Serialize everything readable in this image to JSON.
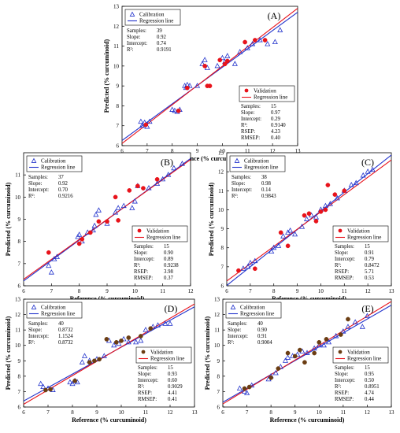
{
  "chart_data": [
    {
      "type": "scatter",
      "panel_label": "(A)",
      "xlabel": "Reference (% curcuminoid)",
      "ylabel": "Predicted (% curcuminoid)",
      "xlim": [
        6,
        13
      ],
      "ylim": [
        6,
        13
      ],
      "xticks": [
        "6",
        "7",
        "8",
        "9",
        "10",
        "11",
        "12",
        "13"
      ],
      "yticks": [
        "6",
        "7",
        "8",
        "9",
        "10",
        "11",
        "12",
        "13"
      ],
      "legend_cal": {
        "marker": "Calibration",
        "line": "Regression line",
        "placement": "top-left"
      },
      "stats_cal": [
        [
          "Samples:",
          "39"
        ],
        [
          "Slope:",
          "0.92"
        ],
        [
          "Intercept:",
          "0.74"
        ],
        [
          "R²:",
          "0.9191"
        ]
      ],
      "legend_val": {
        "marker": "Validation",
        "line": "Regression line",
        "placement": "bottom-right"
      },
      "stats_val": [
        [
          "Samples:",
          "15"
        ],
        [
          "Slope:",
          "0.97"
        ],
        [
          "Intercept:",
          "0.29"
        ],
        [
          "R²:",
          "0.9140"
        ],
        [
          "RSEP:",
          "4.23"
        ],
        [
          "RMSEP:",
          "0.40"
        ]
      ],
      "cal_line": {
        "slope": 0.92,
        "intercept": 0.74
      },
      "val_line": {
        "slope": 0.97,
        "intercept": 0.29
      },
      "val_marker": "circle",
      "val_color": "#e8131b",
      "calibration": [
        [
          6.75,
          7.2
        ],
        [
          6.8,
          7.0
        ],
        [
          6.9,
          7.15
        ],
        [
          7.0,
          6.95
        ],
        [
          7.1,
          7.2
        ],
        [
          8.0,
          7.8
        ],
        [
          8.1,
          7.75
        ],
        [
          8.2,
          7.7
        ],
        [
          8.3,
          7.8
        ],
        [
          8.5,
          9.0
        ],
        [
          8.55,
          8.9
        ],
        [
          8.6,
          9.05
        ],
        [
          8.7,
          9.0
        ],
        [
          9.0,
          9.0
        ],
        [
          9.2,
          10.1
        ],
        [
          9.3,
          10.3
        ],
        [
          9.4,
          9.9
        ],
        [
          9.8,
          10.0
        ],
        [
          10.0,
          10.4
        ],
        [
          10.1,
          10.2
        ],
        [
          10.2,
          10.5
        ],
        [
          10.5,
          10.1
        ],
        [
          10.7,
          10.7
        ],
        [
          11.0,
          10.9
        ],
        [
          11.2,
          11.1
        ],
        [
          11.5,
          11.3
        ],
        [
          11.8,
          11.1
        ],
        [
          12.1,
          11.2
        ],
        [
          12.3,
          11.8
        ]
      ],
      "validation": [
        [
          6.95,
          7.05
        ],
        [
          8.25,
          7.75
        ],
        [
          8.6,
          8.9
        ],
        [
          9.3,
          10.0
        ],
        [
          9.4,
          9.0
        ],
        [
          9.5,
          9.0
        ],
        [
          9.9,
          10.3
        ],
        [
          10.1,
          10.1
        ],
        [
          10.2,
          10.25
        ],
        [
          10.9,
          11.2
        ],
        [
          11.3,
          11.3
        ],
        [
          11.7,
          11.3
        ]
      ]
    },
    {
      "type": "scatter",
      "panel_label": "(B)",
      "xlabel": "Reference (% curcuminoid)",
      "ylabel": "Predicted (% curcuminoid)",
      "xlim": [
        6,
        12
      ],
      "ylim": [
        6,
        12
      ],
      "xticks": [
        "6",
        "7",
        "8",
        "9",
        "10",
        "11",
        "12"
      ],
      "yticks": [
        "6",
        "7",
        "8",
        "9",
        "10",
        "11"
      ],
      "legend_cal": {
        "marker": "Calibration",
        "line": "Regression line",
        "placement": "top-left"
      },
      "stats_cal": [
        [
          "Samples:",
          "37"
        ],
        [
          "Slope:",
          "0.92"
        ],
        [
          "Intercept:",
          "0.70"
        ],
        [
          "R²:",
          "0.9216"
        ]
      ],
      "legend_val": {
        "marker": "Validation",
        "line": "Regression line",
        "placement": "bottom-right"
      },
      "stats_val": [
        [
          "Samples:",
          "15"
        ],
        [
          "Slope:",
          "0.90"
        ],
        [
          "Intercept:",
          "0.89"
        ],
        [
          "R²:",
          "0.9238"
        ],
        [
          "RSEP:",
          "3.98"
        ],
        [
          "RMSEP:",
          "0.37"
        ]
      ],
      "cal_line": {
        "slope": 0.92,
        "intercept": 0.7
      },
      "val_line": {
        "slope": 0.9,
        "intercept": 0.89
      },
      "val_marker": "circle",
      "val_color": "#e8131b",
      "calibration": [
        [
          6.9,
          6.9
        ],
        [
          7.0,
          6.6
        ],
        [
          7.1,
          7.2
        ],
        [
          7.2,
          7.3
        ],
        [
          7.95,
          8.2
        ],
        [
          8.0,
          8.3
        ],
        [
          8.1,
          8.0
        ],
        [
          8.3,
          8.4
        ],
        [
          8.5,
          8.5
        ],
        [
          8.55,
          8.7
        ],
        [
          8.6,
          9.2
        ],
        [
          8.7,
          9.4
        ],
        [
          9.0,
          8.8
        ],
        [
          9.3,
          9.3
        ],
        [
          9.4,
          9.5
        ],
        [
          9.6,
          9.6
        ],
        [
          9.9,
          9.5
        ],
        [
          10.0,
          9.8
        ],
        [
          10.1,
          10.5
        ],
        [
          10.5,
          10.4
        ],
        [
          10.8,
          10.6
        ],
        [
          11.0,
          10.8
        ],
        [
          11.2,
          11.0
        ],
        [
          11.4,
          11.3
        ],
        [
          11.7,
          11.5
        ]
      ],
      "validation": [
        [
          6.9,
          7.5
        ],
        [
          8.0,
          7.9
        ],
        [
          8.1,
          8.1
        ],
        [
          8.4,
          8.4
        ],
        [
          8.7,
          8.9
        ],
        [
          9.0,
          8.9
        ],
        [
          9.3,
          10.0
        ],
        [
          9.4,
          8.95
        ],
        [
          9.8,
          10.3
        ],
        [
          10.1,
          10.5
        ],
        [
          10.3,
          10.4
        ],
        [
          10.8,
          10.8
        ]
      ]
    },
    {
      "type": "scatter",
      "panel_label": "(C)",
      "xlabel": "Reference (% curcuminoid)",
      "ylabel": "Predicted (% curcuminoid)",
      "xlim": [
        6,
        13
      ],
      "ylim": [
        6,
        13
      ],
      "xticks": [
        "6",
        "7",
        "8",
        "9",
        "10",
        "11",
        "12",
        "13"
      ],
      "yticks": [
        "6",
        "7",
        "8",
        "9",
        "10",
        "11",
        "12",
        "13"
      ],
      "legend_cal": {
        "marker": "Calibration",
        "line": "Regression line",
        "placement": "top-left"
      },
      "stats_cal": [
        [
          "Samples:",
          "38"
        ],
        [
          "Slope:",
          "0.98"
        ],
        [
          "Intercept:",
          "0.14"
        ],
        [
          "R²:",
          "0.9843"
        ]
      ],
      "legend_val": {
        "marker": "Validation",
        "line": "Regression line",
        "placement": "bottom-right"
      },
      "stats_val": [
        [
          "Samples:",
          "15"
        ],
        [
          "Slope:",
          "0.91"
        ],
        [
          "Intercept:",
          "0.79"
        ],
        [
          "R²:",
          "0.8472"
        ],
        [
          "RSEP:",
          "5.71"
        ],
        [
          "RMSEP:",
          "0.53"
        ]
      ],
      "cal_line": {
        "slope": 0.98,
        "intercept": 0.14
      },
      "val_line": {
        "slope": 0.91,
        "intercept": 0.79
      },
      "val_marker": "circle",
      "val_color": "#e8131b",
      "calibration": [
        [
          6.7,
          6.9
        ],
        [
          6.9,
          7.0
        ],
        [
          7.0,
          7.2
        ],
        [
          7.2,
          7.3
        ],
        [
          7.9,
          7.8
        ],
        [
          8.0,
          8.0
        ],
        [
          8.2,
          8.1
        ],
        [
          8.4,
          8.6
        ],
        [
          8.6,
          8.8
        ],
        [
          8.7,
          8.9
        ],
        [
          8.9,
          8.7
        ],
        [
          9.2,
          9.1
        ],
        [
          9.4,
          9.5
        ],
        [
          9.6,
          9.7
        ],
        [
          9.8,
          9.6
        ],
        [
          10.0,
          10.0
        ],
        [
          10.2,
          10.2
        ],
        [
          10.4,
          10.3
        ],
        [
          10.7,
          10.6
        ],
        [
          11.0,
          11.0
        ],
        [
          11.3,
          11.3
        ],
        [
          11.5,
          11.4
        ],
        [
          11.8,
          11.8
        ],
        [
          12.0,
          12.0
        ],
        [
          12.2,
          12.1
        ]
      ],
      "validation": [
        [
          6.5,
          6.8
        ],
        [
          7.2,
          6.9
        ],
        [
          8.3,
          8.8
        ],
        [
          8.6,
          8.1
        ],
        [
          9.3,
          9.7
        ],
        [
          9.5,
          9.8
        ],
        [
          9.8,
          9.4
        ],
        [
          10.0,
          9.9
        ],
        [
          10.2,
          10.0
        ],
        [
          10.3,
          11.3
        ],
        [
          10.6,
          10.8
        ],
        [
          11.0,
          11.0
        ]
      ]
    },
    {
      "type": "scatter",
      "panel_label": "(D)",
      "xlabel": "Reference (% curcuminoid)",
      "ylabel": "Predicted (% curcuminoid)",
      "xlim": [
        6,
        13
      ],
      "ylim": [
        6,
        13
      ],
      "xticks": [
        "6",
        "7",
        "8",
        "9",
        "10",
        "11",
        "12",
        "13"
      ],
      "yticks": [
        "6",
        "7",
        "8",
        "9",
        "10",
        "11",
        "12",
        "13"
      ],
      "legend_cal": {
        "marker": "Calibration",
        "line": "Regression line",
        "placement": "top-left"
      },
      "stats_cal": [
        [
          "Samples:",
          "40"
        ],
        [
          "Slope:",
          "0.8732"
        ],
        [
          "Intercept:",
          "1.1524"
        ],
        [
          "R²:",
          "0.8732"
        ]
      ],
      "legend_val": {
        "marker": "Validation",
        "line": "Regression line",
        "placement": "bottom-right"
      },
      "stats_val": [
        [
          "Samples:",
          "15"
        ],
        [
          "Slope:",
          "0.93"
        ],
        [
          "Intercept:",
          "0.60"
        ],
        [
          "R²:",
          "0.9029"
        ],
        [
          "RSEP:",
          "4.41"
        ],
        [
          "RMSEP:",
          "0.41"
        ]
      ],
      "cal_line": {
        "slope": 0.8732,
        "intercept": 1.1524
      },
      "val_line": {
        "slope": 0.93,
        "intercept": 0.6
      },
      "val_marker": "circle",
      "val_color": "#6b3d12",
      "calibration": [
        [
          6.7,
          7.5
        ],
        [
          6.8,
          7.3
        ],
        [
          7.0,
          7.2
        ],
        [
          7.2,
          7.1
        ],
        [
          7.9,
          7.6
        ],
        [
          8.0,
          7.5
        ],
        [
          8.1,
          7.7
        ],
        [
          8.2,
          7.6
        ],
        [
          8.4,
          8.9
        ],
        [
          8.5,
          9.3
        ],
        [
          8.7,
          9.0
        ],
        [
          9.0,
          9.1
        ],
        [
          9.3,
          9.3
        ],
        [
          9.5,
          10.3
        ],
        [
          9.7,
          10.0
        ],
        [
          9.9,
          10.1
        ],
        [
          10.1,
          10.4
        ],
        [
          10.3,
          10.2
        ],
        [
          10.6,
          10.2
        ],
        [
          10.8,
          10.3
        ],
        [
          11.0,
          11.0
        ],
        [
          11.3,
          11.2
        ],
        [
          11.5,
          11.3
        ],
        [
          11.8,
          11.4
        ],
        [
          12.0,
          11.4
        ]
      ],
      "validation": [
        [
          6.9,
          7.1
        ],
        [
          7.1,
          7.15
        ],
        [
          8.1,
          7.7
        ],
        [
          8.7,
          8.9
        ],
        [
          8.9,
          9.0
        ],
        [
          9.1,
          9.1
        ],
        [
          9.4,
          10.4
        ],
        [
          9.8,
          10.2
        ],
        [
          10.0,
          10.3
        ],
        [
          10.3,
          10.5
        ],
        [
          10.8,
          10.6
        ],
        [
          11.2,
          11.1
        ]
      ]
    },
    {
      "type": "scatter",
      "panel_label": "(E)",
      "xlabel": "Reference (% curcuminoid)",
      "ylabel": "Predicted (% curcuminoid)",
      "xlim": [
        6,
        13
      ],
      "ylim": [
        6,
        13
      ],
      "xticks": [
        "6",
        "7",
        "8",
        "9",
        "10",
        "11",
        "12",
        "13"
      ],
      "yticks": [
        "6",
        "7",
        "8",
        "9",
        "10",
        "11",
        "12",
        "13"
      ],
      "legend_cal": {
        "marker": "Calibration",
        "line": "Regression line",
        "placement": "top-left"
      },
      "stats_cal": [
        [
          "Samples:",
          "40"
        ],
        [
          "Slope:",
          "0.90"
        ],
        [
          "Intercept:",
          "0.91"
        ],
        [
          "R²:",
          "0.9004"
        ]
      ],
      "legend_val": {
        "marker": "Validation",
        "line": "Regression line",
        "placement": "bottom-right"
      },
      "stats_val": [
        [
          "Samples:",
          "15"
        ],
        [
          "Slope:",
          "0.95"
        ],
        [
          "Intercept:",
          "0.50"
        ],
        [
          "R²:",
          "0.8951"
        ],
        [
          "RSEP:",
          "4.74"
        ],
        [
          "RMSEP:",
          "0.44"
        ]
      ],
      "cal_line": {
        "slope": 0.9,
        "intercept": 0.91
      },
      "val_line": {
        "slope": 0.95,
        "intercept": 0.5
      },
      "val_marker": "circle",
      "val_color": "#6b3d12",
      "calibration": [
        [
          6.7,
          7.2
        ],
        [
          6.9,
          7.0
        ],
        [
          7.0,
          6.9
        ],
        [
          7.2,
          7.4
        ],
        [
          7.9,
          7.8
        ],
        [
          8.0,
          8.0
        ],
        [
          8.2,
          8.2
        ],
        [
          8.4,
          8.6
        ],
        [
          8.6,
          9.0
        ],
        [
          8.7,
          9.2
        ],
        [
          8.9,
          9.3
        ],
        [
          9.1,
          9.4
        ],
        [
          9.3,
          9.6
        ],
        [
          9.5,
          9.5
        ],
        [
          9.8,
          9.8
        ],
        [
          10.0,
          10.0
        ],
        [
          10.2,
          10.0
        ],
        [
          10.4,
          10.2
        ],
        [
          10.7,
          10.6
        ],
        [
          11.0,
          10.9
        ],
        [
          11.2,
          11.2
        ],
        [
          11.5,
          11.5
        ],
        [
          11.8,
          11.2
        ],
        [
          12.0,
          11.9
        ]
      ],
      "validation": [
        [
          6.9,
          7.2
        ],
        [
          7.1,
          7.3
        ],
        [
          8.0,
          7.9
        ],
        [
          8.3,
          8.5
        ],
        [
          8.7,
          9.5
        ],
        [
          9.0,
          9.3
        ],
        [
          9.2,
          9.7
        ],
        [
          9.4,
          8.9
        ],
        [
          9.8,
          9.5
        ],
        [
          10.0,
          10.2
        ],
        [
          10.3,
          10.4
        ],
        [
          10.9,
          10.7
        ],
        [
          11.2,
          11.7
        ]
      ]
    }
  ]
}
